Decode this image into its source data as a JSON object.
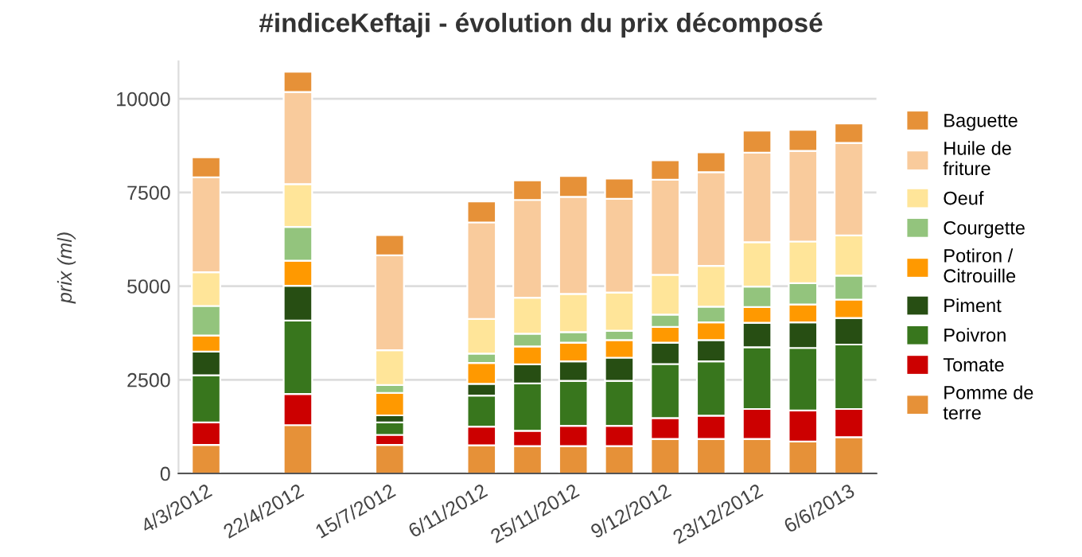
{
  "chart_data": {
    "type": "bar",
    "stacked": true,
    "title": "#indiceKeftaji - évolution du prix décomposé",
    "ylabel": "prix (ml)",
    "categories": [
      "4/3/2012",
      null,
      "22/4/2012",
      null,
      "15/7/2012",
      null,
      "6/11/2012",
      null,
      "25/11/2012",
      null,
      "9/12/2012",
      null,
      "23/12/2012",
      null,
      "6/6/2013"
    ],
    "series": [
      {
        "name": "Pomme de terre",
        "color": "#e69138",
        "values": [
          760,
          null,
          1290,
          null,
          760,
          null,
          750,
          730,
          730,
          730,
          920,
          920,
          920,
          850,
          970
        ]
      },
      {
        "name": "Tomate",
        "color": "#cc0000",
        "values": [
          600,
          null,
          830,
          null,
          270,
          null,
          500,
          410,
          540,
          540,
          560,
          620,
          800,
          830,
          750
        ]
      },
      {
        "name": "Poivron",
        "color": "#38761d",
        "values": [
          1260,
          null,
          1960,
          null,
          330,
          null,
          830,
          1260,
          1200,
          1200,
          1440,
          1450,
          1650,
          1670,
          1720
        ]
      },
      {
        "name": "Piment",
        "color": "#274e13",
        "values": [
          630,
          null,
          930,
          null,
          190,
          null,
          310,
          510,
          520,
          620,
          570,
          570,
          650,
          680,
          710
        ]
      },
      {
        "name": "Potiron / Citrouille",
        "color": "#ff9900",
        "values": [
          430,
          null,
          670,
          null,
          600,
          null,
          560,
          480,
          500,
          470,
          420,
          470,
          420,
          480,
          490
        ]
      },
      {
        "name": "Courgette",
        "color": "#93c47d",
        "values": [
          790,
          null,
          900,
          null,
          210,
          null,
          250,
          340,
          280,
          250,
          330,
          420,
          550,
          570,
          640
        ]
      },
      {
        "name": "Oeuf",
        "color": "#ffe599",
        "values": [
          900,
          null,
          1140,
          null,
          930,
          null,
          920,
          960,
          1020,
          1020,
          1060,
          1090,
          1180,
          1110,
          1070
        ]
      },
      {
        "name": "Huile de friture",
        "color": "#f9cb9c",
        "values": [
          2530,
          null,
          2460,
          null,
          2530,
          null,
          2580,
          2610,
          2590,
          2500,
          2540,
          2500,
          2390,
          2420,
          2470
        ]
      },
      {
        "name": "Baguette",
        "color": "#e69138",
        "values": [
          540,
          null,
          540,
          null,
          540,
          null,
          560,
          520,
          560,
          540,
          520,
          530,
          590,
          560,
          520
        ]
      }
    ],
    "ylim": [
      0,
      11000
    ],
    "yticks": [
      0,
      2500,
      5000,
      7500,
      10000
    ],
    "grid": "y",
    "legend": "right"
  }
}
